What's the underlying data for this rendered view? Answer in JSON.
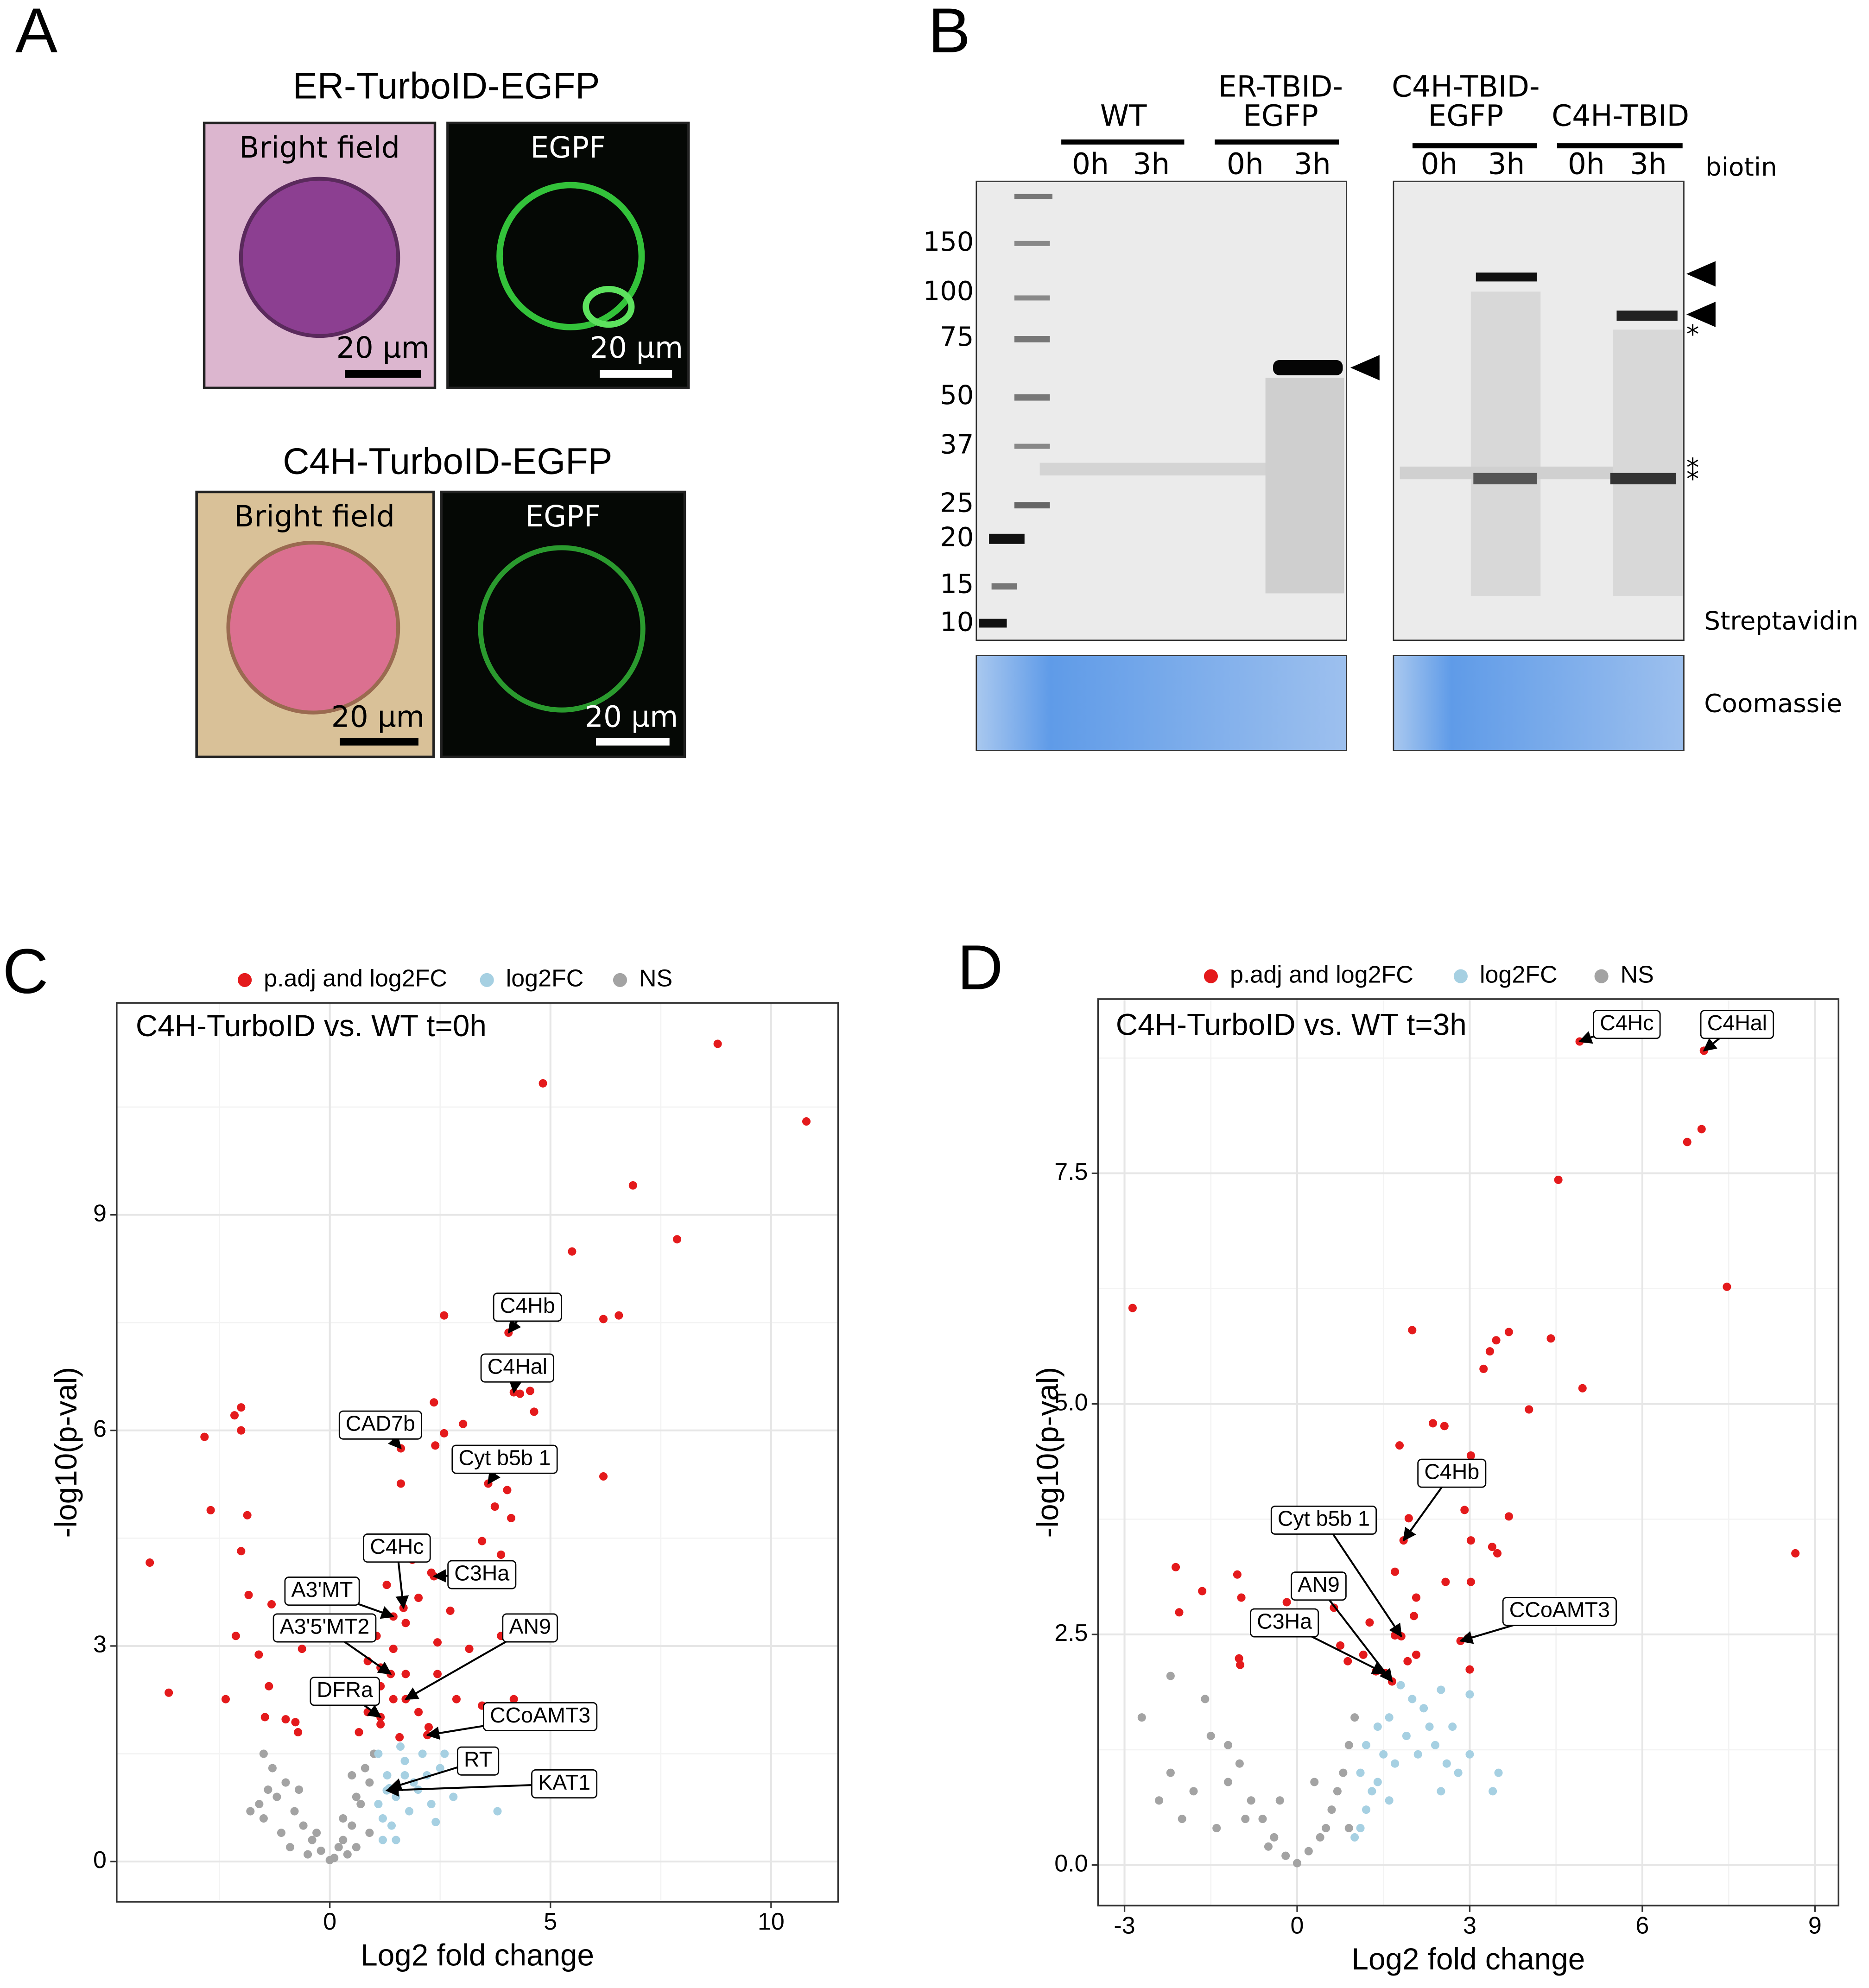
{
  "panel_labels": [
    "A",
    "B"
  ],
  "panel_a": {
    "cells": [
      {
        "title": "ER-TurboID-EGFP",
        "bright_field": "Bright field",
        "fluorescence": "EGPF",
        "scale_bf": "20 µm",
        "scale_fl": "20 µm"
      },
      {
        "title": "C4H-TurboID-EGFP",
        "bright_field": "Bright field",
        "fluorescence": "EGPF",
        "scale_bf": "20 µm",
        "scale_fl": "20 µm"
      }
    ]
  },
  "panel_b": {
    "groups": [
      [
        "WT"
      ],
      [
        "ER-TBID-",
        "EGFP"
      ],
      [
        "C4H-TBID-",
        "EGFP"
      ],
      [
        "C4H-TBID"
      ]
    ],
    "times": [
      "0h",
      "3h",
      "0h",
      "3h",
      "0h",
      "3h",
      "0h",
      "3h"
    ],
    "treatment": "biotin",
    "markers": [
      150,
      100,
      75,
      50,
      37,
      25,
      20,
      15,
      10
    ],
    "blot": "Streptavidin",
    "stain": "Coomassie",
    "asterisks": [
      "*",
      "*",
      "*"
    ]
  },
  "chart_data": [
    {
      "type": "scatter",
      "panel": "C",
      "title": "C4H-TurboID vs. WT t=0h",
      "x_label": "Log2 fold change",
      "y_label": "-log10(p-val)",
      "xlim": [
        -4.83,
        11.52
      ],
      "ylim": [
        -0.56,
        11.95
      ],
      "xticks": [
        0,
        5,
        10
      ],
      "yticks": [
        0,
        3,
        6,
        9
      ],
      "grid": true,
      "series": [
        {
          "name": "p.adj and log2FC",
          "color": "#e41a1c",
          "x": [
            8.79,
            4.83,
            10.8,
            6.87,
            7.87,
            5.49,
            2.59,
            6.2,
            6.55,
            4.05,
            -2.01,
            -2.16,
            -2.01,
            -2.84,
            2.36,
            4.54,
            4.31,
            3.02,
            4.63,
            6.2,
            -2.7,
            -1.87,
            -4.08,
            -2.01,
            3.59,
            4.02,
            3.74,
            4.11,
            3.45,
            3.88,
            1.61,
            2.39,
            2.59,
            -3.65,
            -2.36,
            -2.13,
            -1.61,
            -1.32,
            -1.84,
            -1.38,
            -1.0,
            -0.78,
            -1.47,
            -0.92,
            -0.63,
            -0.72,
            0.66,
            0.86,
            1.15,
            1.44,
            1.72,
            2.01,
            2.3,
            2.73,
            3.16,
            2.44,
            2.87,
            3.45,
            1.15,
            1.58,
            2.01,
            1.06,
            1.29,
            2.44,
            1.72,
            0.86,
            1.44,
            1.87,
            2.87,
            2.24,
            1.15,
            3.88,
            4.17,
            4.17,
            1.61,
            1.67,
            2.36,
            1.44,
            1.38,
            1.15,
            1.72,
            2.21
          ],
          "values": [
            11.38,
            10.83,
            10.3,
            9.41,
            8.66,
            8.49,
            7.6,
            7.55,
            7.6,
            7.36,
            6.32,
            6.21,
            6.0,
            5.91,
            6.39,
            6.55,
            6.51,
            6.09,
            6.26,
            5.36,
            4.89,
            4.82,
            4.16,
            4.32,
            5.26,
            5.17,
            4.94,
            4.78,
            4.46,
            4.27,
            5.26,
            5.79,
            5.96,
            2.35,
            2.26,
            3.14,
            2.88,
            3.58,
            3.71,
            2.44,
            1.98,
            1.94,
            2.01,
            3.28,
            2.96,
            1.8,
            1.8,
            2.08,
            2.44,
            2.96,
            3.32,
            3.67,
            4.02,
            3.49,
            2.96,
            2.61,
            2.26,
            2.17,
            1.91,
            1.73,
            2.08,
            3.14,
            3.85,
            3.05,
            2.61,
            2.79,
            2.26,
            4.2,
            3.85,
            1.87,
            2.7,
            3.14,
            2.26,
            6.53,
            5.75,
            3.53,
            3.97,
            3.41,
            2.61,
            2.01,
            2.26,
            1.76
          ]
        },
        {
          "name": "log2FC",
          "color": "#a6d0e2",
          "x": [
            1.1,
            1.3,
            1.5,
            1.7,
            1.9,
            2.1,
            2.3,
            1.2,
            1.4,
            1.6,
            2.5,
            1.8,
            2.0,
            2.2,
            1.1,
            1.35,
            1.29,
            2.6,
            3.0,
            2.8,
            3.8,
            2.4,
            1.5,
            1.2,
            1.7
          ],
          "values": [
            1.5,
            1.2,
            0.9,
            1.4,
            1.1,
            1.5,
            0.8,
            0.6,
            0.5,
            1.6,
            1.3,
            0.7,
            1.0,
            1.2,
            0.8,
            1.02,
            0.99,
            1.5,
            1.5,
            0.9,
            0.7,
            0.55,
            0.3,
            0.3,
            1.2
          ]
        },
        {
          "name": "NS",
          "color": "#a3a3a3",
          "x": [
            -1.5,
            -1.3,
            -1.2,
            -1.0,
            -0.8,
            -0.6,
            -0.4,
            -0.2,
            0,
            0.1,
            0.2,
            0.3,
            0.5,
            0.7,
            0.9,
            1.0,
            0.8,
            0.6,
            -1.6,
            -1.8,
            -1.5,
            -1.1,
            -0.9,
            -0.5,
            0.4,
            0.6,
            0.9,
            0.3,
            -0.3,
            -1.4,
            0.5,
            -0.7
          ],
          "values": [
            1.5,
            1.3,
            0.9,
            1.1,
            0.7,
            0.5,
            0.3,
            0.15,
            0.02,
            0.05,
            0.2,
            0.3,
            0.5,
            0.8,
            1.1,
            1.5,
            1.3,
            0.9,
            0.8,
            0.7,
            0.6,
            0.4,
            0.2,
            0.1,
            0.1,
            0.2,
            0.4,
            0.6,
            0.4,
            1.0,
            1.2,
            1.0
          ]
        }
      ],
      "annotations": [
        {
          "text": "C4Hb",
          "x": 4.05,
          "y": 7.36
        },
        {
          "text": "C4Hal",
          "x": 4.17,
          "y": 6.53
        },
        {
          "text": "CAD7b",
          "x": 1.61,
          "y": 5.75
        },
        {
          "text": "Cyt b5b 1",
          "x": 3.59,
          "y": 5.26
        },
        {
          "text": "C4Hc",
          "x": 1.67,
          "y": 3.53
        },
        {
          "text": "C3Ha",
          "x": 2.36,
          "y": 3.97
        },
        {
          "text": "A3'MT",
          "x": 1.44,
          "y": 3.41
        },
        {
          "text": "A3'5'MT2",
          "x": 1.38,
          "y": 2.61
        },
        {
          "text": "DFRa",
          "x": 1.15,
          "y": 2.01
        },
        {
          "text": "AN9",
          "x": 1.72,
          "y": 2.26
        },
        {
          "text": "CCoAMT3",
          "x": 2.21,
          "y": 1.76
        },
        {
          "text": "RT",
          "x": 1.35,
          "y": 1.02
        },
        {
          "text": "KAT1",
          "x": 1.29,
          "y": 0.99
        }
      ]
    },
    {
      "type": "scatter",
      "panel": "D",
      "title": "C4H-TurboID vs. WT t=3h",
      "x_label": "Log2 fold change",
      "y_label": "-log10(p-val)",
      "xlim": [
        -3.46,
        9.41
      ],
      "ylim": [
        -0.44,
        9.39
      ],
      "xticks": [
        -3,
        0,
        3,
        6,
        9
      ],
      "yticks": [
        {
          "value": 0,
          "label": "0.0"
        },
        2.5,
        {
          "value": 5,
          "label": "5.0"
        },
        7.5
      ],
      "grid": true,
      "series": [
        {
          "name": "p.adj and log2FC",
          "color": "#e41a1c",
          "x": [
            4.91,
            7.07,
            7.03,
            6.78,
            4.54,
            7.47,
            -2.86,
            2.0,
            3.68,
            3.46,
            4.41,
            3.35,
            3.24,
            4.96,
            4.03,
            2.36,
            2.56,
            1.78,
            3.02,
            1.85,
            1.94,
            2.91,
            3.68,
            3.02,
            3.39,
            3.48,
            -2.11,
            -1.04,
            -1.65,
            -0.97,
            -2.05,
            -1.01,
            -0.99,
            -0.18,
            0.64,
            2.07,
            2.58,
            3.02,
            1.7,
            1.26,
            1.7,
            2.03,
            0.75,
            2.84,
            2.97,
            1.81,
            1.37,
            1.54,
            1.92,
            2.07,
            3.0,
            1.15,
            0.88,
            1.65,
            1.52,
            8.66
          ],
          "values": [
            8.93,
            8.83,
            7.98,
            7.84,
            7.43,
            6.27,
            6.04,
            5.8,
            5.78,
            5.69,
            5.71,
            5.57,
            5.38,
            5.17,
            4.94,
            4.79,
            4.76,
            4.55,
            4.44,
            3.52,
            3.76,
            3.85,
            3.78,
            3.52,
            3.45,
            3.38,
            3.23,
            3.15,
            2.97,
            2.9,
            2.74,
            2.24,
            2.17,
            2.85,
            2.79,
            2.9,
            3.07,
            3.07,
            3.18,
            2.63,
            2.49,
            2.7,
            2.38,
            2.43,
            2.46,
            2.48,
            2.1,
            2.08,
            2.21,
            2.28,
            2.12,
            2.28,
            2.21,
            1.99,
            2.08,
            3.38
          ]
        },
        {
          "name": "log2FC",
          "color": "#a6d0e2",
          "x": [
            1.8,
            2.0,
            2.2,
            1.6,
            1.4,
            1.2,
            1.1,
            1.3,
            1.5,
            1.7,
            1.9,
            2.1,
            2.4,
            2.6,
            2.8,
            3.0,
            2.5,
            1.2,
            1.1,
            1.4,
            2.3,
            2.5,
            2.7,
            3.0,
            1.6,
            3.4,
            3.5,
            1.0
          ],
          "values": [
            1.95,
            1.8,
            1.7,
            1.6,
            1.5,
            1.3,
            1.0,
            0.8,
            1.2,
            1.1,
            1.4,
            1.2,
            1.3,
            1.1,
            1.0,
            1.2,
            0.8,
            0.6,
            0.4,
            0.9,
            1.5,
            1.9,
            1.5,
            1.85,
            0.7,
            0.8,
            1.0,
            0.3
          ]
        },
        {
          "name": "NS",
          "color": "#a3a3a3",
          "x": [
            -2.2,
            -1.8,
            -1.5,
            -1.2,
            -1.0,
            -0.8,
            -0.6,
            -0.4,
            -0.2,
            0,
            0.2,
            0.4,
            0.6,
            0.8,
            0.9,
            0.7,
            0.5,
            -2.7,
            -1.6,
            -2.0,
            -2.4,
            -1.2,
            -0.9,
            -0.5,
            1.0,
            0.9,
            -1.4,
            0.3,
            -0.3,
            -2.2
          ],
          "values": [
            1.0,
            0.8,
            1.4,
            1.3,
            1.1,
            0.7,
            0.5,
            0.3,
            0.1,
            0.02,
            0.15,
            0.3,
            0.6,
            1.0,
            1.3,
            0.8,
            0.4,
            1.6,
            1.8,
            0.5,
            0.7,
            0.9,
            0.5,
            0.2,
            1.6,
            0.4,
            0.4,
            0.9,
            0.7,
            2.05
          ]
        }
      ],
      "annotations": [
        {
          "text": "C4Hc",
          "x": 4.91,
          "y": 8.93
        },
        {
          "text": "C4Hal",
          "x": 7.07,
          "y": 8.83
        },
        {
          "text": "C4Hb",
          "x": 1.85,
          "y": 3.52
        },
        {
          "text": "Cyt b5b 1",
          "x": 1.81,
          "y": 2.48
        },
        {
          "text": "AN9",
          "x": 1.65,
          "y": 1.99
        },
        {
          "text": "C3Ha",
          "x": 1.52,
          "y": 2.08
        },
        {
          "text": "CCoAMT3",
          "x": 2.84,
          "y": 2.43
        }
      ]
    }
  ]
}
